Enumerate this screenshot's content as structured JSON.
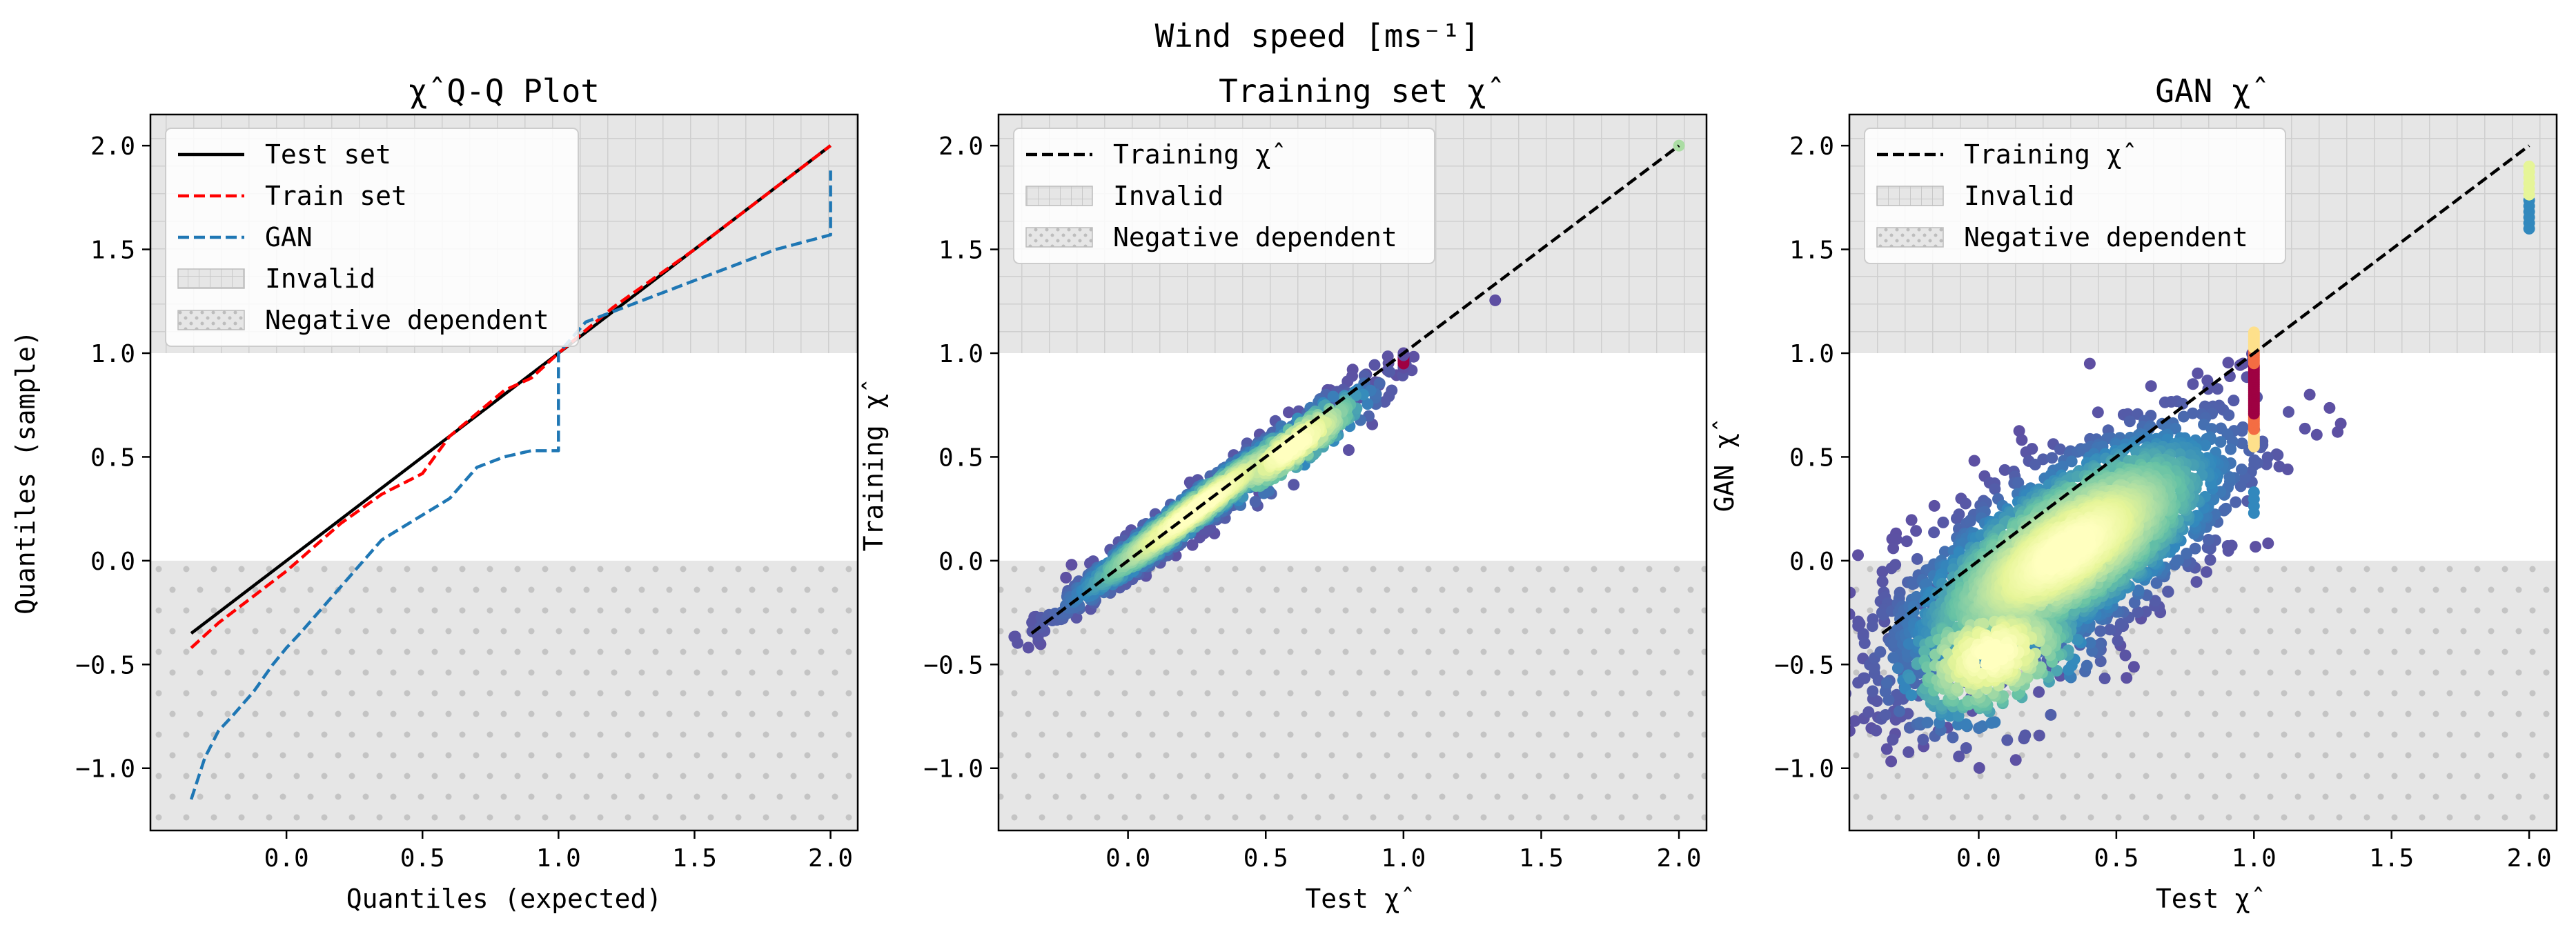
{
  "suptitle": "Wind speed [ms⁻¹]",
  "colors": {
    "test_line": "#000000",
    "train_line": "#ff0000",
    "gan_line": "#1f77b4",
    "region_fill": "#e6e6e6",
    "grid_hatch": "#cfcfcf",
    "dot_hatch": "#c4c4c4",
    "density_low": "#5e4fa2",
    "density_mid": "#66c2a5",
    "density_high": "#ffffbf",
    "density_peak": "#9e0142"
  },
  "chart_data": [
    {
      "type": "line",
      "title": "χ̂ Q-Q Plot",
      "xlabel": "Quantiles (expected)",
      "ylabel": "Quantiles (sample)",
      "xlim": [
        -0.5,
        2.1
      ],
      "ylim": [
        -1.3,
        2.15
      ],
      "xticks": [
        "0.0",
        "0.5",
        "1.0",
        "1.5",
        "2.0"
      ],
      "yticks": [
        "−1.0",
        "−0.5",
        "0.0",
        "0.5",
        "1.0",
        "1.5",
        "2.0"
      ],
      "xtick_values": [
        0,
        0.5,
        1,
        1.5,
        2
      ],
      "ytick_values": [
        -1,
        -0.5,
        0,
        0.5,
        1,
        1.5,
        2
      ],
      "regions": {
        "invalid_above": 1.0,
        "negative_below": 0.0
      },
      "legend": {
        "position": "top-left",
        "entries": [
          "Test set",
          "Train set",
          "GAN",
          "Invalid",
          "Negative dependent"
        ]
      },
      "series": [
        {
          "name": "Test set",
          "style": "solid",
          "x": [
            -0.35,
            2.0
          ],
          "y": [
            -0.35,
            2.0
          ]
        },
        {
          "name": "Train set",
          "style": "dashed",
          "x": [
            -0.35,
            -0.25,
            -0.1,
            0.0,
            0.2,
            0.35,
            0.5,
            0.6,
            0.8,
            0.9,
            1.0,
            1.2,
            1.5,
            1.8,
            2.0
          ],
          "y": [
            -0.42,
            -0.3,
            -0.15,
            -0.05,
            0.18,
            0.32,
            0.42,
            0.6,
            0.82,
            0.88,
            1.0,
            1.22,
            1.5,
            1.8,
            2.0
          ]
        },
        {
          "name": "GAN",
          "style": "dashed",
          "x": [
            -0.35,
            -0.3,
            -0.25,
            -0.2,
            -0.12,
            -0.05,
            0.0,
            0.05,
            0.15,
            0.25,
            0.35,
            0.5,
            0.6,
            0.7,
            0.8,
            0.9,
            1.0,
            1.0,
            1.1,
            1.5,
            1.8,
            2.0,
            2.0
          ],
          "y": [
            -1.15,
            -0.95,
            -0.82,
            -0.75,
            -0.63,
            -0.5,
            -0.42,
            -0.35,
            -0.2,
            -0.05,
            0.1,
            0.22,
            0.3,
            0.45,
            0.5,
            0.53,
            0.53,
            1.0,
            1.15,
            1.35,
            1.5,
            1.57,
            1.88
          ]
        }
      ]
    },
    {
      "type": "scatter",
      "title": "Training set χ̂",
      "xlabel": "Test χ̂",
      "ylabel": "Training χ̂",
      "xlim": [
        -0.47,
        2.1
      ],
      "ylim": [
        -1.3,
        2.15
      ],
      "xticks": [
        "0.0",
        "0.5",
        "1.0",
        "1.5",
        "2.0"
      ],
      "yticks": [
        "−1.0",
        "−0.5",
        "0.0",
        "0.5",
        "1.0",
        "1.5",
        "2.0"
      ],
      "xtick_values": [
        0,
        0.5,
        1,
        1.5,
        2
      ],
      "ytick_values": [
        -1,
        -0.5,
        0,
        0.5,
        1,
        1.5,
        2
      ],
      "regions": {
        "invalid_above": 1.0,
        "negative_below": 0.0
      },
      "legend": {
        "position": "top-left",
        "entries": [
          "Training χ̂",
          "Invalid",
          "Negative dependent"
        ]
      },
      "reference_line": {
        "name": "Training χ̂",
        "x": [
          -0.35,
          2.0
        ],
        "y": [
          -0.35,
          2.0
        ]
      },
      "clusters": [
        {
          "cx": 0.25,
          "cy": 0.25,
          "along": 0.32,
          "across": 0.035,
          "n": 1600,
          "seed": 11
        },
        {
          "cx": 0.6,
          "cy": 0.55,
          "along": 0.2,
          "across": 0.05,
          "n": 400,
          "seed": 12
        }
      ],
      "column_points": [
        {
          "x": 1.0,
          "y_from": 0.93,
          "y_to": 1.0,
          "n": 8
        }
      ],
      "extra_points": [
        {
          "x": 2.0,
          "y": 2.0
        }
      ]
    },
    {
      "type": "scatter",
      "title": "GAN χ̂",
      "xlabel": "Test χ̂",
      "ylabel": "GAN χ̂",
      "xlim": [
        -0.47,
        2.1
      ],
      "ylim": [
        -1.3,
        2.15
      ],
      "xticks": [
        "0.0",
        "0.5",
        "1.0",
        "1.5",
        "2.0"
      ],
      "yticks": [
        "−1.0",
        "−0.5",
        "0.0",
        "0.5",
        "1.0",
        "1.5",
        "2.0"
      ],
      "xtick_values": [
        0,
        0.5,
        1,
        1.5,
        2
      ],
      "ytick_values": [
        -1,
        -0.5,
        0,
        0.5,
        1,
        1.5,
        2
      ],
      "regions": {
        "invalid_above": 1.0,
        "negative_below": 0.0
      },
      "legend": {
        "position": "top-left",
        "entries": [
          "Training χ̂",
          "Invalid",
          "Negative dependent"
        ]
      },
      "reference_line": {
        "name": "Training χ̂",
        "x": [
          -0.35,
          2.0
        ],
        "y": [
          -0.35,
          2.0
        ]
      },
      "clusters": [
        {
          "cx": 0.32,
          "cy": 0.05,
          "along": 0.38,
          "across": 0.16,
          "n": 3000,
          "seed": 21
        },
        {
          "cx": 0.05,
          "cy": -0.45,
          "along": 0.2,
          "across": 0.15,
          "n": 500,
          "seed": 22
        }
      ],
      "column_points": [
        {
          "x": 1.0,
          "y_from": 0.55,
          "y_to": 1.1,
          "n": 60
        },
        {
          "x": 1.0,
          "y_from": 0.23,
          "y_to": 0.33,
          "n": 4
        },
        {
          "x": 2.0,
          "y_from": 1.6,
          "y_to": 1.9,
          "n": 12
        }
      ]
    }
  ]
}
